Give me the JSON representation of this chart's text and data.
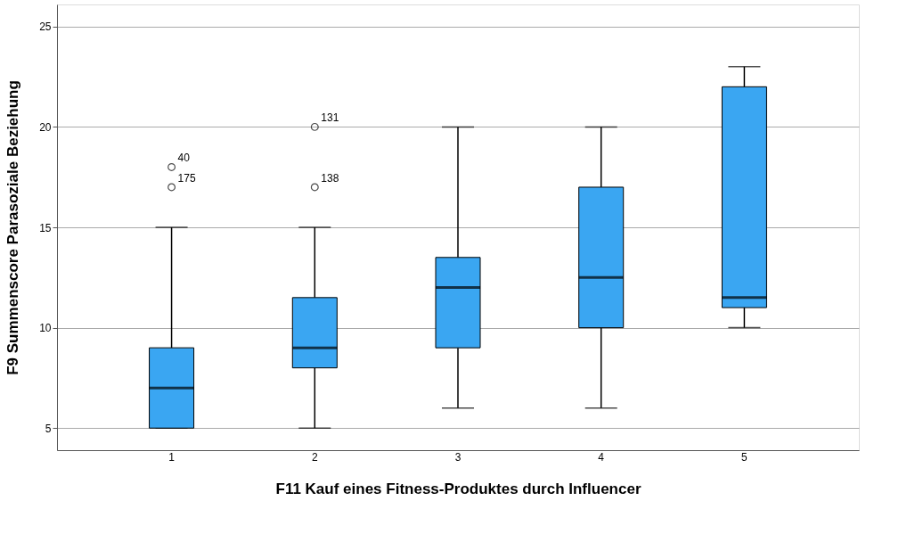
{
  "chart_data": {
    "type": "box",
    "xlabel": "F11 Kauf eines Fitness-Produktes durch Influencer",
    "ylabel": "F9 Summenscore Parasoziale Beziehung",
    "categories": [
      "1",
      "2",
      "3",
      "4",
      "5"
    ],
    "series": [
      {
        "color": "#3aa6f2",
        "boxes": [
          {
            "low": 5,
            "q1": 5,
            "median": 7,
            "q3": 9,
            "high": 15,
            "outliers": [
              18,
              17
            ]
          },
          {
            "low": 5,
            "q1": 8,
            "median": 9,
            "q3": 11.5,
            "high": 15,
            "outliers": [
              20,
              17
            ]
          },
          {
            "low": 6,
            "q1": 9,
            "median": 12,
            "q3": 13.5,
            "high": 20
          },
          {
            "low": 6,
            "q1": 10,
            "median": 12.5,
            "q3": 17,
            "high": 20
          },
          {
            "low": 10,
            "q1": 11,
            "median": 11.5,
            "q3": 22,
            "high": 23
          }
        ]
      }
    ],
    "annotations": [
      "40",
      "175",
      "131",
      "138"
    ],
    "ylim": [
      3.9,
      26.1
    ],
    "yticks": [
      5,
      10,
      15,
      20,
      25
    ],
    "grid": "y",
    "marker": "circle"
  }
}
